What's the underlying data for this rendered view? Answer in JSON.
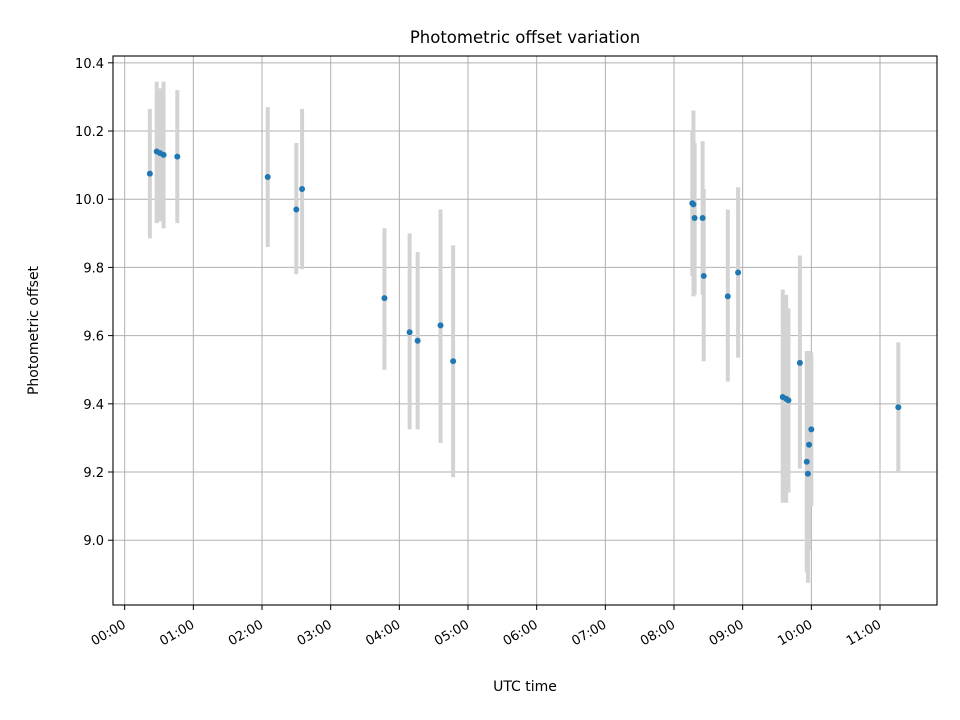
{
  "chart_data": {
    "type": "scatter",
    "title": "Photometric offset variation",
    "xlabel": "UTC time",
    "ylabel": "Photometric offset",
    "x_unit": "hours",
    "xlim": [
      -0.17,
      11.83
    ],
    "ylim": [
      8.81,
      10.42
    ],
    "grid": true,
    "x_ticks": [
      {
        "value": 0,
        "label": "00:00"
      },
      {
        "value": 1,
        "label": "01:00"
      },
      {
        "value": 2,
        "label": "02:00"
      },
      {
        "value": 3,
        "label": "03:00"
      },
      {
        "value": 4,
        "label": "04:00"
      },
      {
        "value": 5,
        "label": "05:00"
      },
      {
        "value": 6,
        "label": "06:00"
      },
      {
        "value": 7,
        "label": "07:00"
      },
      {
        "value": 8,
        "label": "08:00"
      },
      {
        "value": 9,
        "label": "09:00"
      },
      {
        "value": 10,
        "label": "10:00"
      },
      {
        "value": 11,
        "label": "11:00"
      }
    ],
    "y_ticks": [
      {
        "value": 9.0,
        "label": "9.0"
      },
      {
        "value": 9.2,
        "label": "9.2"
      },
      {
        "value": 9.4,
        "label": "9.4"
      },
      {
        "value": 9.6,
        "label": "9.6"
      },
      {
        "value": 9.8,
        "label": "9.8"
      },
      {
        "value": 10.0,
        "label": "10.0"
      },
      {
        "value": 10.2,
        "label": "10.2"
      },
      {
        "value": 10.4,
        "label": "10.4"
      }
    ],
    "colors": {
      "point": "#1f77b4",
      "errorbar": "#d3d3d3",
      "grid": "#b0b0b0",
      "axes": "#000000"
    },
    "points": [
      {
        "x": "00:22",
        "y": 10.075,
        "y_low": 9.885,
        "y_high": 10.265
      },
      {
        "x": "00:28",
        "y": 10.14,
        "y_low": 9.93,
        "y_high": 10.345
      },
      {
        "x": "00:31",
        "y": 10.135,
        "y_low": 9.935,
        "y_high": 10.325
      },
      {
        "x": "00:34",
        "y": 10.13,
        "y_low": 9.915,
        "y_high": 10.345
      },
      {
        "x": "00:46",
        "y": 10.125,
        "y_low": 9.93,
        "y_high": 10.32
      },
      {
        "x": "02:05",
        "y": 10.065,
        "y_low": 9.86,
        "y_high": 10.27
      },
      {
        "x": "02:30",
        "y": 9.97,
        "y_low": 9.78,
        "y_high": 10.165
      },
      {
        "x": "02:35",
        "y": 10.03,
        "y_low": 9.795,
        "y_high": 10.265
      },
      {
        "x": "03:47",
        "y": 9.71,
        "y_low": 9.5,
        "y_high": 9.915
      },
      {
        "x": "04:09",
        "y": 9.61,
        "y_low": 9.325,
        "y_high": 9.9
      },
      {
        "x": "04:16",
        "y": 9.585,
        "y_low": 9.325,
        "y_high": 9.845
      },
      {
        "x": "04:36",
        "y": 9.63,
        "y_low": 9.285,
        "y_high": 9.97
      },
      {
        "x": "04:47",
        "y": 9.525,
        "y_low": 9.185,
        "y_high": 9.865
      },
      {
        "x": "08:16",
        "y": 9.988,
        "y_low": 9.775,
        "y_high": 10.2
      },
      {
        "x": "08:17",
        "y": 9.985,
        "y_low": 9.715,
        "y_high": 10.26
      },
      {
        "x": "08:18",
        "y": 9.945,
        "y_low": 9.72,
        "y_high": 10.165
      },
      {
        "x": "08:25",
        "y": 9.945,
        "y_low": 9.72,
        "y_high": 10.17
      },
      {
        "x": "08:26",
        "y": 9.775,
        "y_low": 9.525,
        "y_high": 10.03
      },
      {
        "x": "08:47",
        "y": 9.715,
        "y_low": 9.465,
        "y_high": 9.97
      },
      {
        "x": "08:56",
        "y": 9.785,
        "y_low": 9.535,
        "y_high": 10.035
      },
      {
        "x": "09:35",
        "y": 9.42,
        "y_low": 9.11,
        "y_high": 9.735
      },
      {
        "x": "09:38",
        "y": 9.415,
        "y_low": 9.11,
        "y_high": 9.72
      },
      {
        "x": "09:40",
        "y": 9.41,
        "y_low": 9.14,
        "y_high": 9.68
      },
      {
        "x": "09:50",
        "y": 9.52,
        "y_low": 9.21,
        "y_high": 9.835
      },
      {
        "x": "09:56",
        "y": 9.23,
        "y_low": 8.905,
        "y_high": 9.555
      },
      {
        "x": "09:57",
        "y": 9.195,
        "y_low": 8.875,
        "y_high": 9.515
      },
      {
        "x": "09:58",
        "y": 9.28,
        "y_low": 8.97,
        "y_high": 9.555
      },
      {
        "x": "10:00",
        "y": 9.325,
        "y_low": 9.1,
        "y_high": 9.55
      },
      {
        "x": "11:16",
        "y": 9.39,
        "y_low": 9.2,
        "y_high": 9.58
      }
    ]
  }
}
